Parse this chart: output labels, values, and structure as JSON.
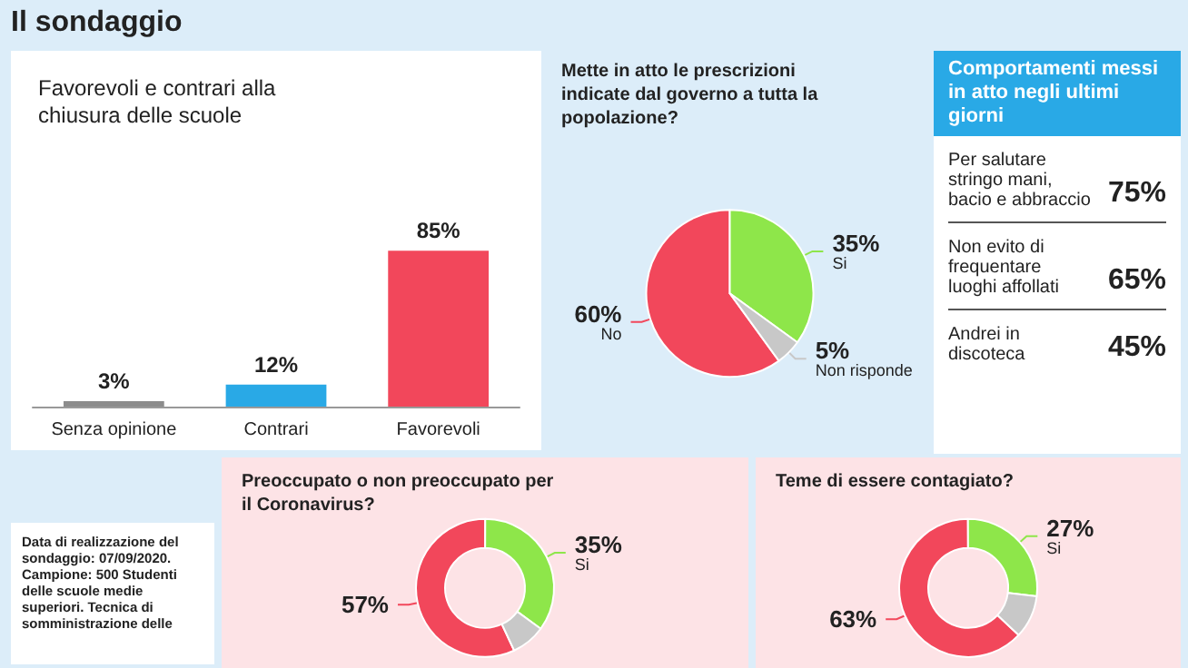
{
  "chart_data": [
    {
      "type": "bar",
      "title": "Favorevoli e contrari alla chiusura delle scuole",
      "annotations": [
        "Il sondaggio"
      ],
      "categories": [
        "Senza opinione",
        "Contrari",
        "Favorevoli"
      ],
      "values": [
        3,
        12,
        85
      ],
      "colors": [
        "#8c8c8c",
        "#29a9e6",
        "#f2475b"
      ],
      "value_labels": [
        "3%",
        "12%",
        "85%"
      ]
    },
    {
      "type": "pie",
      "title": "Mette in atto le prescrizioni indicate dal governo a tutta la popolazione?",
      "categories": [
        "No",
        "Si",
        "Non risponde"
      ],
      "values": [
        60,
        35,
        5
      ],
      "colors": [
        "#f2475b",
        "#8ee64a",
        "#c8c8c8"
      ],
      "value_labels": [
        "60%",
        "35%",
        "5%"
      ]
    },
    {
      "type": "other",
      "title": "Comportamenti messi in atto negli ultimi giorni",
      "categories": [
        "Per salutare stringo mani, bacio e abbraccio",
        "Non evito di frequentare luoghi affollati",
        "Andrei in discoteca"
      ],
      "value_labels": [
        "75%",
        "65%",
        "45%"
      ]
    },
    {
      "type": "other",
      "annotations": [
        "Data di realizzazione del sondaggio: 07/09/2020. Campione: 500 Studenti delle scuole medie superiori. Tecnica di somministrazione delle"
      ]
    },
    {
      "type": "donut",
      "title": "Preoccupato o non preoccupato per il Coronavirus?",
      "categories": [
        null,
        "Si",
        null
      ],
      "values": [
        57,
        35,
        8
      ],
      "colors": [
        "#f2475b",
        "#8ee64a",
        "#c8c8c8"
      ],
      "value_labels": [
        "57%",
        "35%",
        null
      ]
    },
    {
      "type": "donut",
      "title": "Teme di essere contagiato?",
      "categories": [
        null,
        "Si",
        null
      ],
      "values": [
        63,
        27,
        10
      ],
      "colors": [
        "#f2475b",
        "#8ee64a",
        "#c8c8c8"
      ],
      "value_labels": [
        "63%",
        "27%",
        null
      ]
    }
  ]
}
